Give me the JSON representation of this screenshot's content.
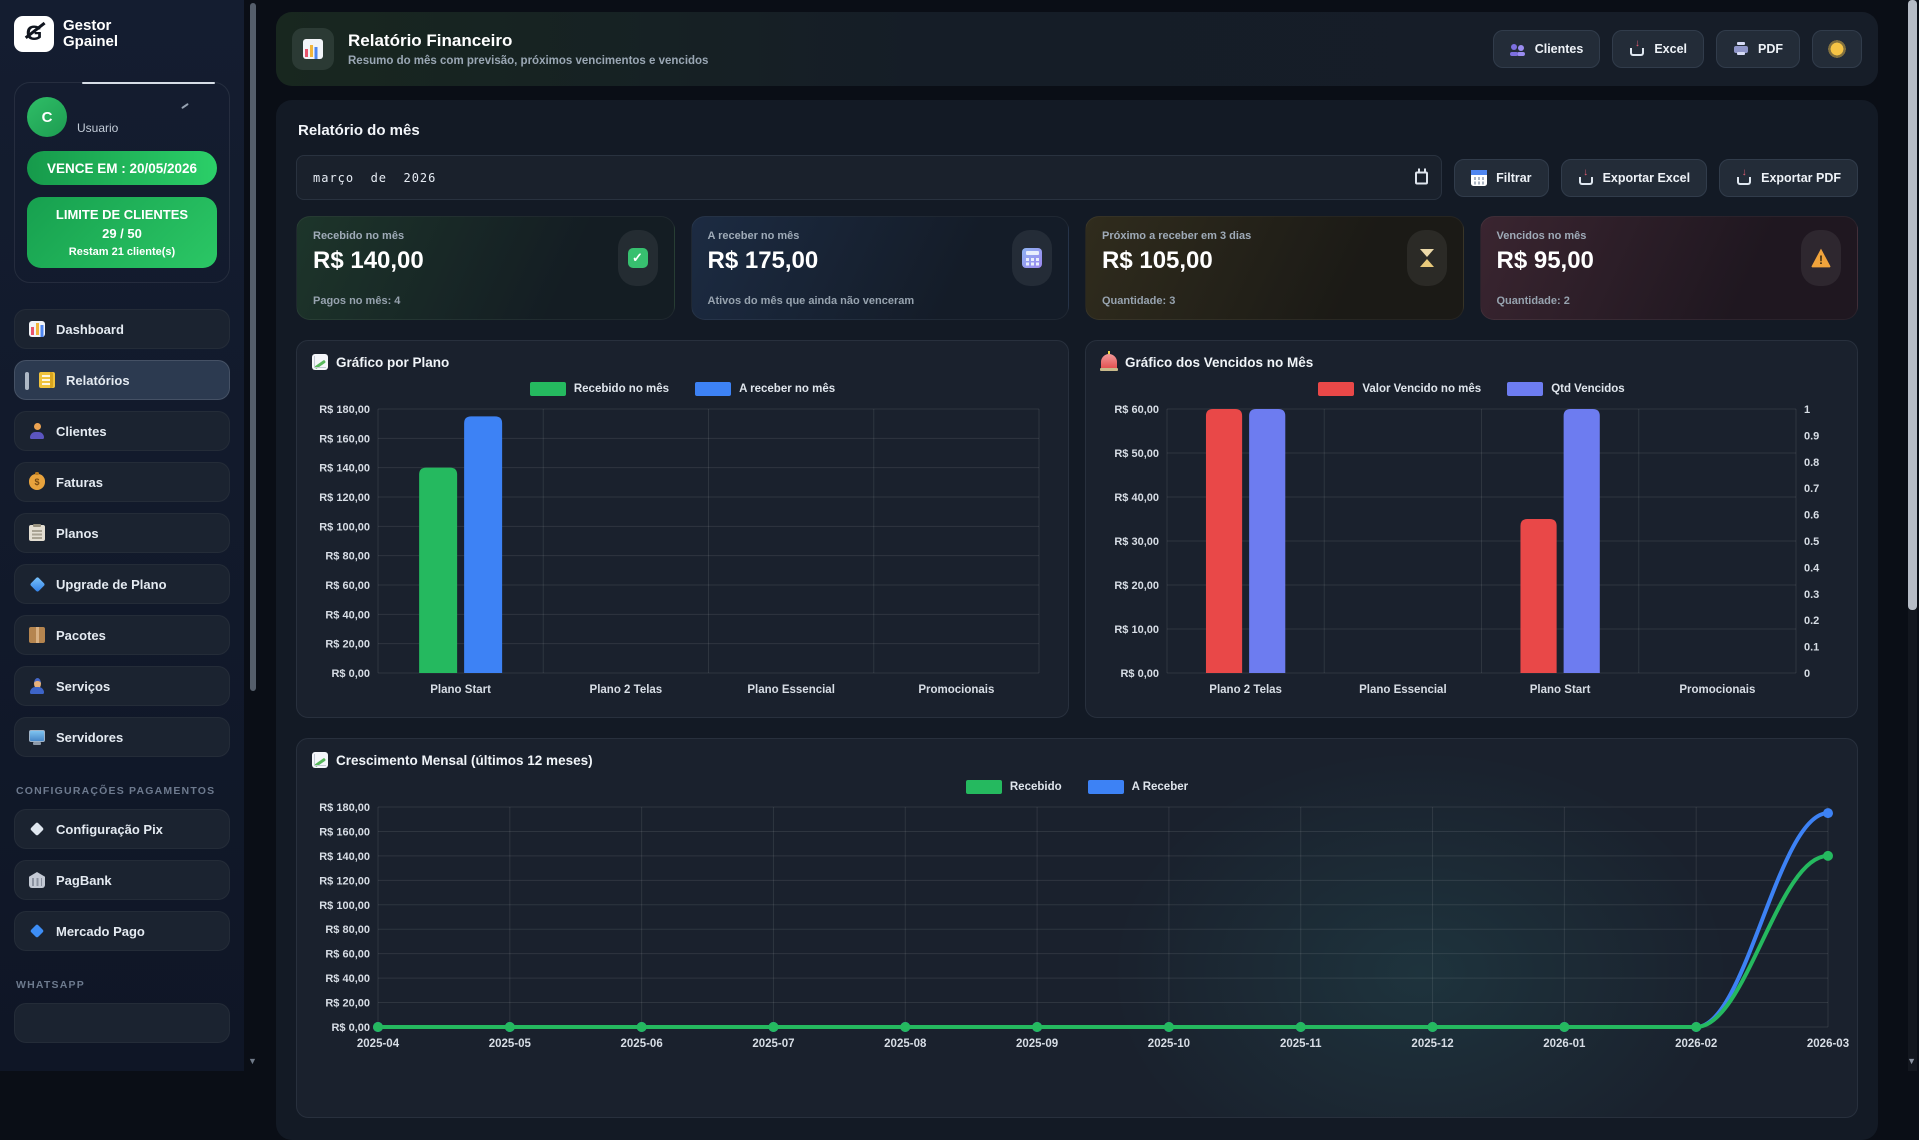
{
  "app": {
    "logo_line1": "Gestor",
    "logo_line2": "Gpainel",
    "accent_green": "#22c55e"
  },
  "sidebar": {
    "user": {
      "avatar_initial": "C",
      "name": "Usuario",
      "expiry_badge": "VENCE EM : 20/05/2026",
      "limit_title": "LIMITE DE CLIENTES",
      "limit_count": "29 / 50",
      "limit_note": "Restam 21 cliente(s)"
    },
    "items": [
      {
        "icon": "bars",
        "label": "Dashboard",
        "active": false
      },
      {
        "icon": "book",
        "label": "Relatórios",
        "active": true
      },
      {
        "icon": "person",
        "label": "Clientes",
        "active": false
      },
      {
        "icon": "money",
        "label": "Faturas",
        "active": false
      },
      {
        "icon": "clipboard",
        "label": "Planos",
        "active": false
      },
      {
        "icon": "gem",
        "label": "Upgrade de Plano",
        "active": false
      },
      {
        "icon": "box",
        "label": "Pacotes",
        "active": false
      },
      {
        "icon": "worker",
        "label": "Serviços",
        "active": false
      },
      {
        "icon": "monitor",
        "label": "Servidores",
        "active": false
      }
    ],
    "sections": {
      "payments": "CONFIGURAÇÕES PAGAMENTOS",
      "whatsapp": "WHATSAPP"
    },
    "payment_items": [
      {
        "icon": "diamond-white",
        "label": "Configuração Pix"
      },
      {
        "icon": "bank",
        "label": "PagBank"
      },
      {
        "icon": "diamond-blue",
        "label": "Mercado Pago"
      }
    ]
  },
  "header": {
    "icon": "bars",
    "title": "Relatório Financeiro",
    "subtitle": "Resumo do mês com previsão, próximos vencimentos e vencidos",
    "buttons": [
      {
        "icon": "users",
        "label": "Clientes"
      },
      {
        "icon": "tray",
        "label": "Excel"
      },
      {
        "icon": "printer",
        "label": "PDF"
      }
    ],
    "theme_icon": "sun"
  },
  "report": {
    "title": "Relatório do mês",
    "month_value": "março  de  2026",
    "filter": {
      "icon": "calendar",
      "label": "Filtrar"
    },
    "export_excel": {
      "icon": "tray",
      "label": "Exportar Excel"
    },
    "export_pdf": {
      "icon": "tray",
      "label": "Exportar PDF"
    }
  },
  "stats": [
    {
      "icon": "check",
      "label": "Recebido no mês",
      "value": "R$ 140,00",
      "note": "Pagos no mês: 4",
      "theme_color": "#22c55e"
    },
    {
      "icon": "calc",
      "label": "A receber no mês",
      "value": "R$ 175,00",
      "note": "Ativos do mês que ainda não venceram",
      "theme_color": "#3d82f5"
    },
    {
      "icon": "hourglass",
      "label": "Próximo a receber em 3 dias",
      "value": "R$ 105,00",
      "note": "Quantidade: 3",
      "theme_color": "#d9a741"
    },
    {
      "icon": "warning",
      "label": "Vencidos no mês",
      "value": "R$ 95,00",
      "note": "Quantidade: 2",
      "theme_color": "#e85555"
    }
  ],
  "chart_data": [
    {
      "type": "bar",
      "title": "Gráfico por Plano",
      "title_icon": "chart-up",
      "categories": [
        "Plano Start",
        "Plano 2 Telas",
        "Plano Essencial",
        "Promocionais"
      ],
      "series": [
        {
          "name": "Recebido no mês",
          "color": "#25b95f",
          "values": [
            140,
            0,
            0,
            0
          ]
        },
        {
          "name": "A receber no mês",
          "color": "#3d82f5",
          "values": [
            175,
            0,
            0,
            0
          ]
        }
      ],
      "ylim": [
        0,
        180
      ],
      "ytick_step": 20,
      "tick_prefix": "R$ ",
      "tick_suffix": ",00",
      "grid": true,
      "legend_position": "top"
    },
    {
      "type": "bar",
      "title": "Gráfico dos Vencidos no Mês",
      "title_icon": "siren",
      "categories": [
        "Plano 2 Telas",
        "Plano Essencial",
        "Plano Start",
        "Promocionais"
      ],
      "series": [
        {
          "name": "Valor Vencido no mês",
          "color": "#e94848",
          "values": [
            60,
            0,
            35,
            0
          ],
          "axis": "left"
        },
        {
          "name": "Qtd Vencidos",
          "color": "#6d7cf0",
          "values": [
            1,
            0,
            1,
            0
          ],
          "axis": "right"
        }
      ],
      "ylim": [
        0,
        60
      ],
      "ytick_step": 10,
      "y2lim": [
        0,
        1
      ],
      "y2tick_step": 0.1,
      "tick_prefix": "R$ ",
      "tick_suffix": ",00",
      "grid": true,
      "legend_position": "top"
    },
    {
      "type": "line",
      "title": "Crescimento Mensal (últimos 12 meses)",
      "title_icon": "chart-up",
      "x": [
        "2025-04",
        "2025-05",
        "2025-06",
        "2025-07",
        "2025-08",
        "2025-09",
        "2025-10",
        "2025-11",
        "2025-12",
        "2026-01",
        "2026-02",
        "2026-03"
      ],
      "series": [
        {
          "name": "A Receber",
          "color": "#3d82f5",
          "values": [
            0,
            0,
            0,
            0,
            0,
            0,
            0,
            0,
            0,
            0,
            0,
            175
          ]
        },
        {
          "name": "Recebido",
          "color": "#25b95f",
          "values": [
            0,
            0,
            0,
            0,
            0,
            0,
            0,
            0,
            0,
            0,
            0,
            140
          ]
        }
      ],
      "legend_order": [
        "Recebido",
        "A Receber"
      ],
      "ylim": [
        0,
        180
      ],
      "ytick_step": 20,
      "tick_prefix": "R$ ",
      "tick_suffix": ",00",
      "grid": true,
      "legend_position": "top"
    }
  ]
}
